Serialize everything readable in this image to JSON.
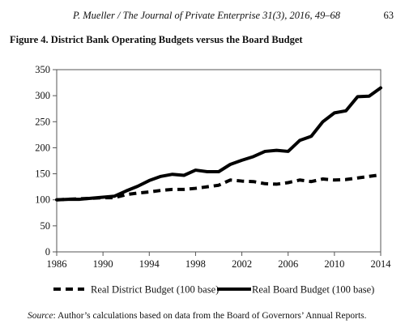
{
  "header": {
    "running_head": "P. Mueller / The Journal of Private Enterprise 31(3), 2016, 49–68",
    "page_number": "63"
  },
  "figure_title": "Figure 4. District Bank Operating Budgets versus the Board Budget",
  "source": {
    "label": "Source",
    "text": ": Author’s calculations based on data from the Board of Governors’ Annual Reports."
  },
  "chart_data": {
    "type": "line",
    "title": "",
    "xlabel": "",
    "ylabel": "",
    "xlim": [
      1986,
      2014
    ],
    "ylim": [
      0,
      350
    ],
    "x_ticks": [
      1986,
      1990,
      1994,
      1998,
      2002,
      2006,
      2010,
      2014
    ],
    "y_ticks": [
      0,
      50,
      100,
      150,
      200,
      250,
      300,
      350
    ],
    "grid": false,
    "legend_position": "bottom",
    "x": [
      1986,
      1987,
      1988,
      1989,
      1990,
      1991,
      1992,
      1993,
      1994,
      1995,
      1996,
      1997,
      1998,
      1999,
      2000,
      2001,
      2002,
      2003,
      2004,
      2005,
      2006,
      2007,
      2008,
      2009,
      2010,
      2011,
      2012,
      2013,
      2014
    ],
    "series": [
      {
        "name": "Real District Budget (100 base)",
        "style": "dashed",
        "values": [
          100,
          101,
          102,
          103,
          104,
          104,
          110,
          113,
          115,
          118,
          120,
          120,
          122,
          125,
          128,
          138,
          136,
          135,
          131,
          130,
          133,
          138,
          135,
          140,
          138,
          139,
          142,
          145,
          148
        ]
      },
      {
        "name": "Real Board Budget (100 base)",
        "style": "solid",
        "values": [
          100,
          101,
          101,
          103,
          105,
          107,
          117,
          126,
          137,
          145,
          149,
          147,
          157,
          154,
          154,
          168,
          176,
          183,
          193,
          195,
          193,
          214,
          222,
          250,
          267,
          271,
          298,
          299,
          315
        ]
      }
    ]
  }
}
